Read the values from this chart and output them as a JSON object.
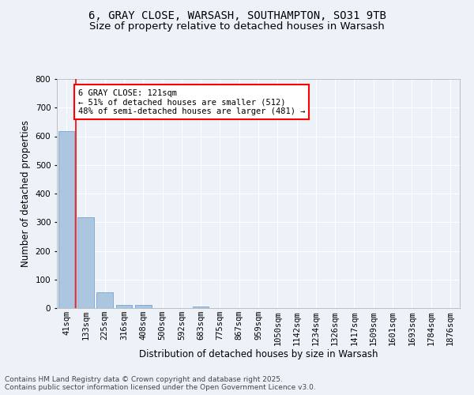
{
  "title_line1": "6, GRAY CLOSE, WARSASH, SOUTHAMPTON, SO31 9TB",
  "title_line2": "Size of property relative to detached houses in Warsash",
  "xlabel": "Distribution of detached houses by size in Warsash",
  "ylabel": "Number of detached properties",
  "bar_color": "#adc6e0",
  "bar_edge_color": "#6699cc",
  "vline_color": "red",
  "categories": [
    "41sqm",
    "133sqm",
    "225sqm",
    "316sqm",
    "408sqm",
    "500sqm",
    "592sqm",
    "683sqm",
    "775sqm",
    "867sqm",
    "959sqm",
    "1050sqm",
    "1142sqm",
    "1234sqm",
    "1326sqm",
    "1417sqm",
    "1509sqm",
    "1601sqm",
    "1693sqm",
    "1784sqm",
    "1876sqm"
  ],
  "values": [
    617,
    316,
    55,
    10,
    12,
    0,
    0,
    5,
    0,
    0,
    0,
    0,
    0,
    0,
    0,
    0,
    0,
    0,
    0,
    0,
    0
  ],
  "ylim": [
    0,
    800
  ],
  "yticks": [
    0,
    100,
    200,
    300,
    400,
    500,
    600,
    700,
    800
  ],
  "annotation_text": "6 GRAY CLOSE: 121sqm\n← 51% of detached houses are smaller (512)\n48% of semi-detached houses are larger (481) →",
  "background_color": "#edf2f8",
  "grid_color": "#ffffff",
  "footer_line1": "Contains HM Land Registry data © Crown copyright and database right 2025.",
  "footer_line2": "Contains public sector information licensed under the Open Government Licence v3.0.",
  "title_fontsize": 10,
  "subtitle_fontsize": 9.5,
  "axis_label_fontsize": 8.5,
  "tick_fontsize": 7.5,
  "annotation_fontsize": 7.5,
  "footer_fontsize": 6.5
}
